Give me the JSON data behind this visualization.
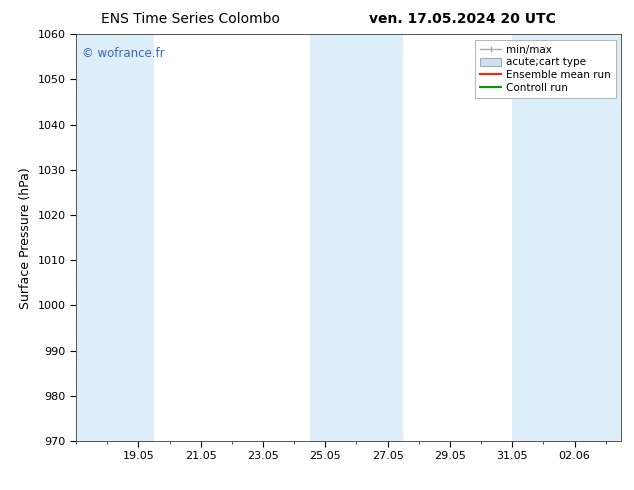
{
  "title_left": "ENS Time Series Colombo",
  "title_right": "ven. 17.05.2024 20 UTC",
  "ylabel": "Surface Pressure (hPa)",
  "ylim": [
    970,
    1060
  ],
  "yticks": [
    970,
    980,
    990,
    1000,
    1010,
    1020,
    1030,
    1040,
    1050,
    1060
  ],
  "x_tick_labels": [
    "19.05",
    "21.05",
    "23.05",
    "25.05",
    "27.05",
    "29.05",
    "31.05",
    "02.06"
  ],
  "x_tick_positions": [
    2,
    4,
    6,
    8,
    10,
    12,
    14,
    16
  ],
  "xlim": [
    0,
    17.5
  ],
  "watermark": "© wofrance.fr",
  "watermark_color": "#3366cc",
  "bg_color": "#ffffff",
  "plot_bg_color": "#ffffff",
  "shaded_bands": [
    {
      "x_start": 0.0,
      "x_end": 2.5,
      "color": "#ddeef8"
    },
    {
      "x_start": 7.5,
      "x_end": 10.5,
      "color": "#ddeef8"
    },
    {
      "x_start": 14.0,
      "x_end": 17.5,
      "color": "#ddeef8"
    }
  ],
  "legend_items": [
    {
      "label": "min/max",
      "type": "errorbar",
      "color": "#aaaaaa"
    },
    {
      "label": "acute;cart type",
      "type": "box",
      "color": "#cce0f0"
    },
    {
      "label": "Ensemble mean run",
      "type": "line",
      "color": "#ff0000"
    },
    {
      "label": "Controll run",
      "type": "line",
      "color": "#008800"
    }
  ],
  "title_fontsize": 10,
  "tick_fontsize": 8,
  "ylabel_fontsize": 9,
  "legend_fontsize": 7.5
}
